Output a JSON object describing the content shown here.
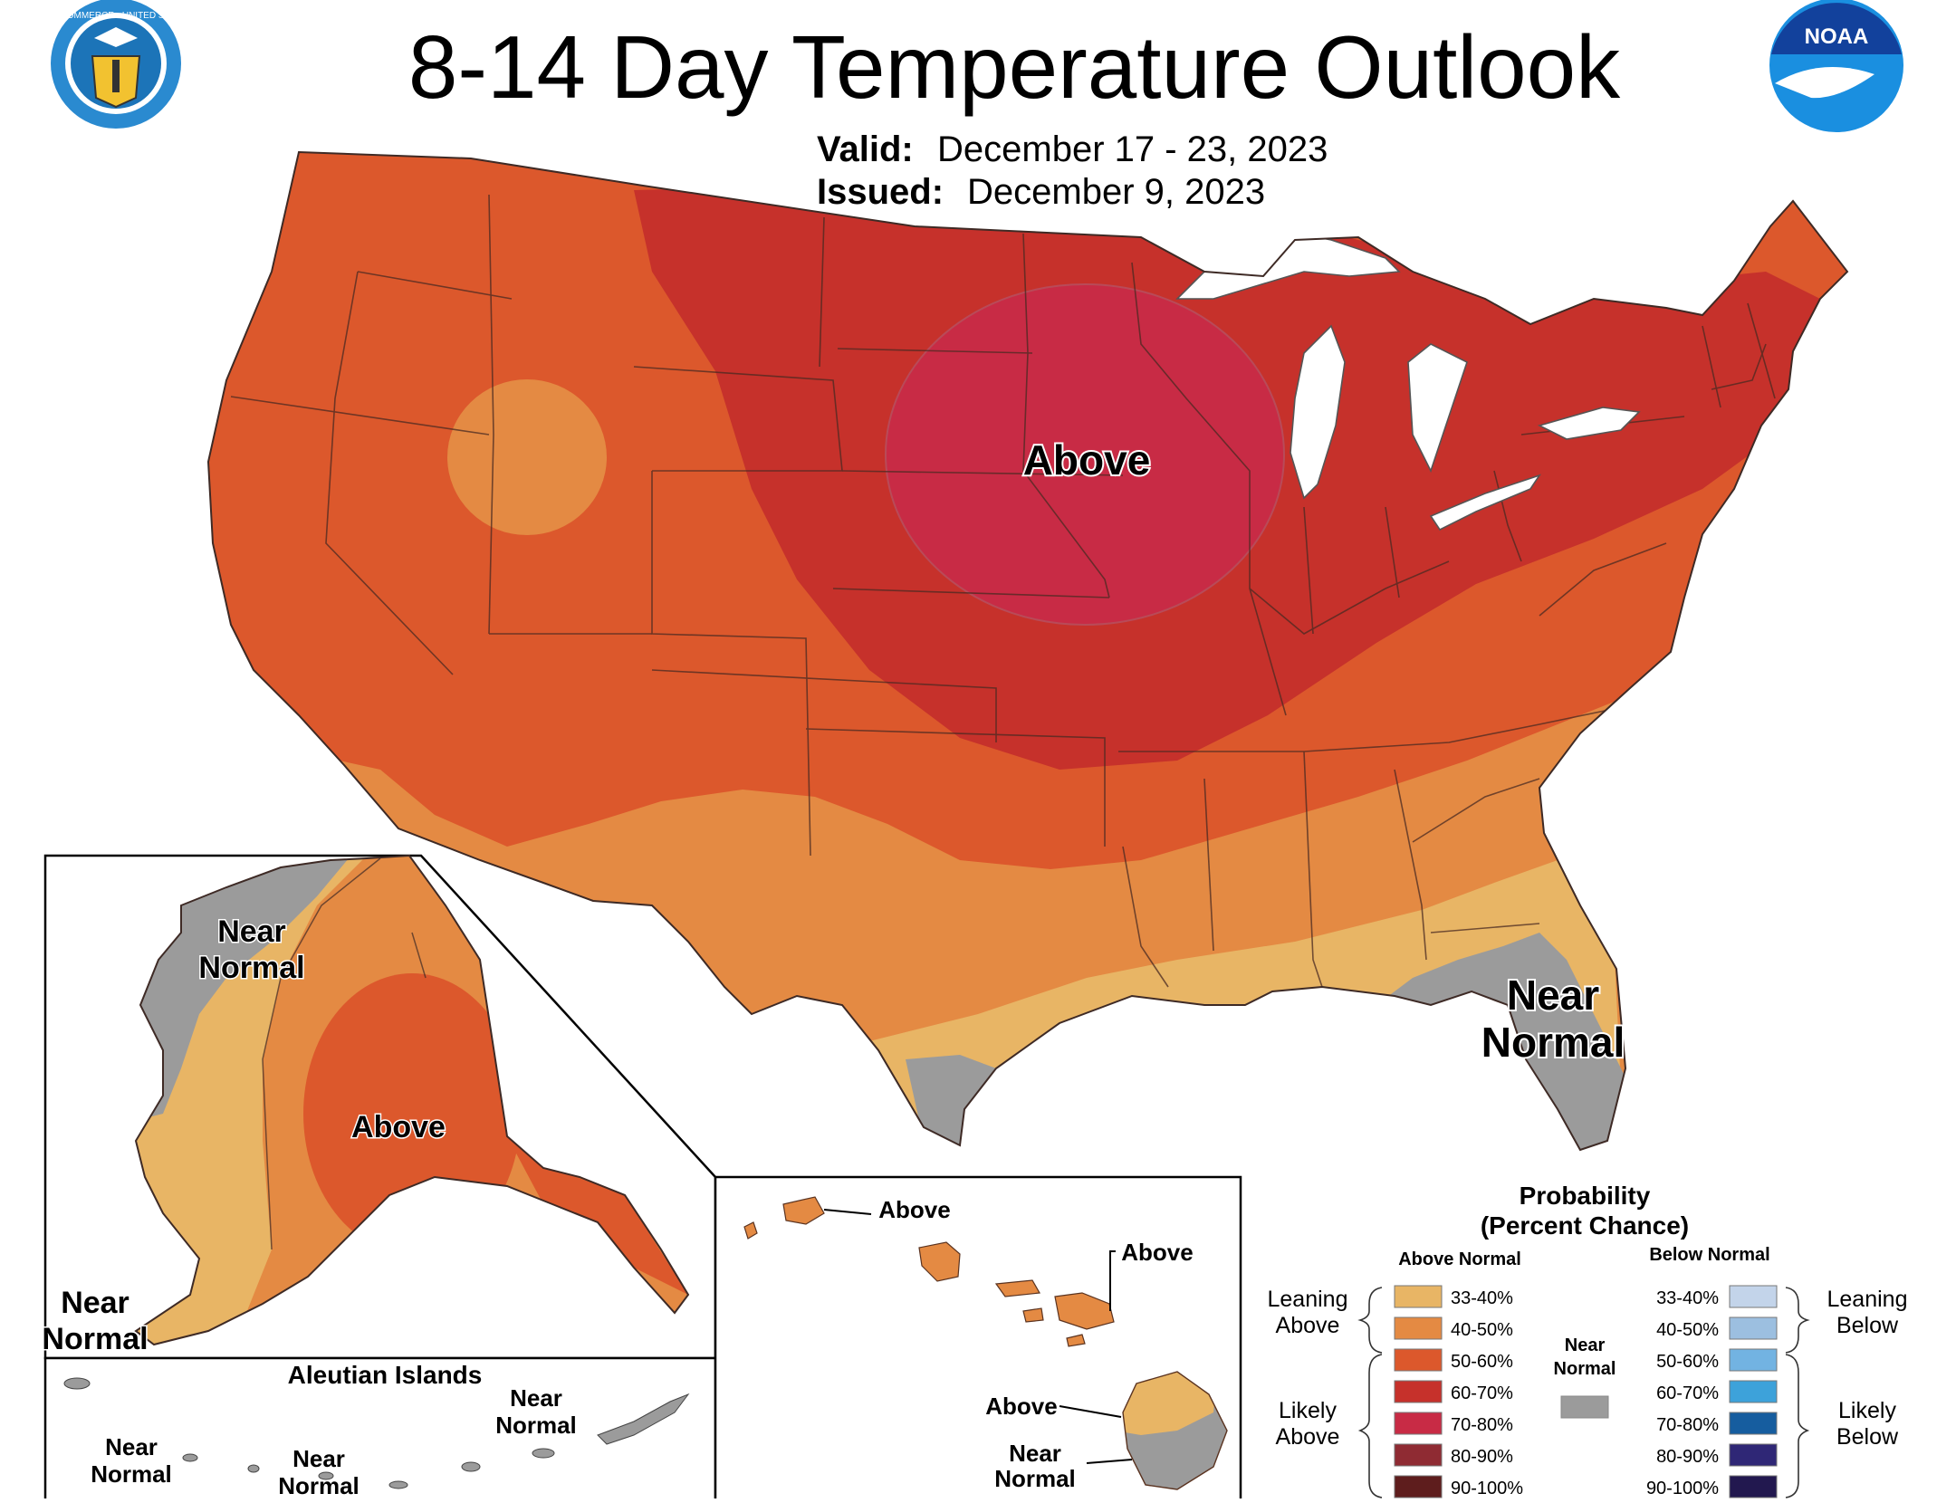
{
  "header": {
    "title": "8-14 Day Temperature Outlook",
    "valid_label": "Valid:",
    "valid_value": "December 17 - 23, 2023",
    "issued_label": "Issued:",
    "issued_value": "December 9, 2023"
  },
  "logos": {
    "commerce_seal_ring_text": "DEPARTMENT OF COMMERCE · UNITED STATES OF AMERICA",
    "noaa_text": "NOAA"
  },
  "map_labels": {
    "conus_above": "Above",
    "conus_near_normal_1": "Near",
    "conus_near_normal_2": "Normal",
    "alaska_above": "Above",
    "alaska_near_1": "Near",
    "alaska_near_2": "Normal",
    "alaska_sw_near_1": "Near",
    "alaska_sw_near_2": "Normal",
    "aleutian_title": "Aleutian Islands",
    "aleutian_near_a_1": "Near",
    "aleutian_near_a_2": "Normal",
    "aleutian_near_b_1": "Near",
    "aleutian_near_b_2": "Normal",
    "aleutian_near_c_1": "Near",
    "aleutian_near_c_2": "Normal",
    "hawaii_above_1": "Above",
    "hawaii_above_2": "Above",
    "hawaii_above_3": "Above",
    "hawaii_near_1": "Near",
    "hawaii_near_2": "Normal"
  },
  "legend": {
    "title_1": "Probability",
    "title_2": "(Percent Chance)",
    "above_header": "Above Normal",
    "below_header": "Below Normal",
    "near_1": "Near",
    "near_2": "Normal",
    "leaning_above_1": "Leaning",
    "leaning_above_2": "Above",
    "likely_above_1": "Likely",
    "likely_above_2": "Above",
    "leaning_below_1": "Leaning",
    "leaning_below_2": "Below",
    "likely_below_1": "Likely",
    "likely_below_2": "Below",
    "near_color": "#9b9b9b",
    "above": [
      {
        "label": "33-40%",
        "color": "#e8b565"
      },
      {
        "label": "40-50%",
        "color": "#e48a43"
      },
      {
        "label": "50-60%",
        "color": "#dc582c"
      },
      {
        "label": "60-70%",
        "color": "#c6312b"
      },
      {
        "label": "70-80%",
        "color": "#c82b45"
      },
      {
        "label": "80-90%",
        "color": "#8f2b33"
      },
      {
        "label": "90-100%",
        "color": "#5e1d1d"
      }
    ],
    "below": [
      {
        "label": "33-40%",
        "color": "#c3d4ea"
      },
      {
        "label": "40-50%",
        "color": "#9cbfe0"
      },
      {
        "label": "50-60%",
        "color": "#72b3e2"
      },
      {
        "label": "60-70%",
        "color": "#3da2da"
      },
      {
        "label": "70-80%",
        "color": "#165d9f"
      },
      {
        "label": "80-90%",
        "color": "#2f2776"
      },
      {
        "label": "90-100%",
        "color": "#22184f"
      }
    ]
  }
}
